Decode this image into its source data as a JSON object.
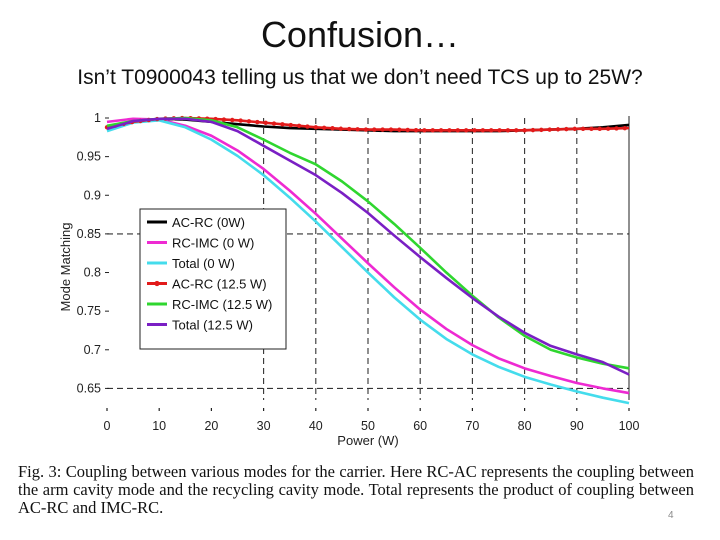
{
  "slide": {
    "title": "Confusion…",
    "subtitle": "Isn’t T0900043 telling us that we don’t need TCS up to 25W?",
    "page_number": "4"
  },
  "caption": {
    "label": "Fig. 3:",
    "text": "Coupling between various modes for the carrier. Here RC-AC represents the coupling between the arm cavity mode and the recycling cavity mode. Total represents the product of coupling between AC-RC and IMC-RC."
  },
  "chart_data": {
    "type": "line",
    "title": "",
    "xlabel": "Power (W)",
    "ylabel": "Mode Matching",
    "xlim": [
      0,
      100
    ],
    "ylim": [
      0.635,
      1.0
    ],
    "x_ticks": [
      0,
      10,
      20,
      30,
      40,
      50,
      60,
      70,
      80,
      90,
      100
    ],
    "y_ticks": [
      1,
      0.95,
      0.9,
      0.85,
      0.8,
      0.75,
      0.7,
      0.65
    ],
    "grid_x": [
      30,
      40,
      50,
      60,
      70,
      80,
      90
    ],
    "grid_y": [
      0.85,
      0.65
    ],
    "x": [
      0,
      5,
      10,
      15,
      20,
      25,
      30,
      35,
      40,
      45,
      50,
      55,
      60,
      65,
      70,
      75,
      80,
      85,
      90,
      95,
      100
    ],
    "series": [
      {
        "name": "AC-RC (0W)",
        "color": "#000000",
        "markers": false,
        "values": [
          0.987,
          0.995,
          0.999,
          0.998,
          0.995,
          0.992,
          0.989,
          0.987,
          0.986,
          0.985,
          0.984,
          0.983,
          0.983,
          0.983,
          0.983,
          0.983,
          0.984,
          0.985,
          0.986,
          0.988,
          0.991
        ]
      },
      {
        "name": "RC-IMC (0 W)",
        "color": "#ee2ad2",
        "markers": false,
        "values": [
          0.995,
          0.999,
          0.998,
          0.99,
          0.977,
          0.958,
          0.934,
          0.906,
          0.876,
          0.844,
          0.812,
          0.781,
          0.752,
          0.727,
          0.706,
          0.689,
          0.676,
          0.666,
          0.657,
          0.65,
          0.644
        ]
      },
      {
        "name": "Total (0 W)",
        "color": "#44dcec",
        "markers": false,
        "values": [
          0.983,
          0.994,
          0.997,
          0.988,
          0.972,
          0.951,
          0.926,
          0.897,
          0.866,
          0.833,
          0.8,
          0.768,
          0.739,
          0.714,
          0.694,
          0.678,
          0.665,
          0.655,
          0.646,
          0.638,
          0.631
        ]
      },
      {
        "name": "AC-RC (12.5 W)",
        "color": "#e21b1b",
        "markers": true,
        "values": [
          0.988,
          0.995,
          0.999,
          1.0,
          0.999,
          0.997,
          0.994,
          0.991,
          0.988,
          0.986,
          0.985,
          0.985,
          0.984,
          0.984,
          0.984,
          0.984,
          0.984,
          0.985,
          0.986,
          0.986,
          0.987
        ]
      },
      {
        "name": "RC-IMC (12.5 W)",
        "color": "#2fd62f",
        "markers": false,
        "values": [
          0.99,
          0.996,
          0.999,
          1.0,
          0.997,
          0.988,
          0.972,
          0.955,
          0.94,
          0.918,
          0.892,
          0.863,
          0.832,
          0.8,
          0.77,
          0.742,
          0.718,
          0.7,
          0.69,
          0.682,
          0.676
        ]
      },
      {
        "name": "Total (12.5 W)",
        "color": "#7a1fc4",
        "markers": false,
        "values": [
          0.986,
          0.996,
          0.999,
          0.999,
          0.995,
          0.983,
          0.964,
          0.945,
          0.926,
          0.903,
          0.877,
          0.848,
          0.82,
          0.793,
          0.767,
          0.743,
          0.722,
          0.705,
          0.694,
          0.684,
          0.668
        ]
      }
    ],
    "legend_position": "left",
    "grid": true
  }
}
